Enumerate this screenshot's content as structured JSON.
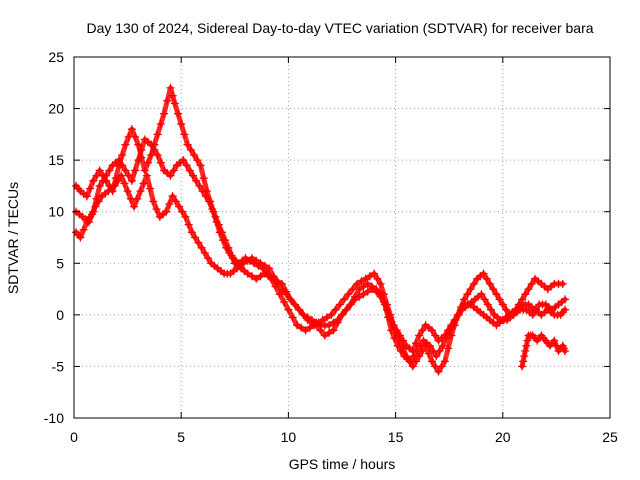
{
  "chart_data": {
    "type": "scatter",
    "title": "Day 130 of 2024, Sidereal Day-to-day VTEC variation (SDTVAR) for receiver bara",
    "xlabel": "GPS time / hours",
    "ylabel": "SDTVAR / TECUs",
    "xlim": [
      0,
      25
    ],
    "ylim": [
      -10,
      25
    ],
    "xticks": [
      0,
      5,
      10,
      15,
      20,
      25
    ],
    "yticks": [
      -10,
      -5,
      0,
      5,
      10,
      15,
      20,
      25
    ],
    "grid": true,
    "marker": "+",
    "color": "#ff0000",
    "series": [
      {
        "name": "track-1",
        "x": [
          0.1,
          0.3,
          0.6,
          0.9,
          1.2,
          1.5,
          1.8,
          2.1,
          2.4,
          2.7,
          3.0,
          3.3,
          3.6,
          3.9,
          4.2,
          4.5,
          4.7,
          5.0,
          5.3,
          5.6,
          5.9,
          6.2,
          6.5,
          6.8,
          7.1,
          7.4,
          7.7,
          8.0,
          8.4,
          8.8,
          9.2,
          9.6,
          10.0,
          10.4,
          10.8,
          11.2,
          11.6,
          12.0,
          12.4,
          12.8,
          13.2,
          13.6,
          14.0,
          14.3,
          14.6,
          14.9,
          15.2,
          15.5,
          15.8,
          16.1,
          16.4,
          16.7,
          17.0,
          17.3,
          17.6,
          17.9,
          18.2,
          18.5,
          18.8,
          19.1,
          19.4,
          19.7,
          20.0,
          20.3,
          20.6,
          20.9,
          21.2,
          21.5,
          21.8,
          22.1,
          22.4,
          22.8
        ],
        "y": [
          12.5,
          12.0,
          11.5,
          13.0,
          14.0,
          13.0,
          12.0,
          14.5,
          16.5,
          18.0,
          16.5,
          14.0,
          15.5,
          17.5,
          19.5,
          22.0,
          20.5,
          18.5,
          16.5,
          15.5,
          14.5,
          12.0,
          10.0,
          8.0,
          6.5,
          5.5,
          5.0,
          5.5,
          5.0,
          4.5,
          3.5,
          2.0,
          0.5,
          -1.0,
          -1.5,
          -1.0,
          -0.5,
          0.0,
          1.0,
          2.0,
          3.0,
          3.5,
          4.0,
          3.0,
          1.0,
          -1.0,
          -2.5,
          -4.0,
          -5.0,
          -4.0,
          -3.0,
          -4.5,
          -5.5,
          -4.5,
          -2.0,
          0.0,
          1.5,
          2.5,
          3.5,
          4.0,
          3.0,
          2.0,
          1.0,
          0.0,
          0.5,
          1.5,
          2.5,
          3.5,
          3.0,
          2.5,
          3.0,
          3.0
        ]
      },
      {
        "name": "track-2",
        "x": [
          0.1,
          0.3,
          0.6,
          0.9,
          1.2,
          1.5,
          1.8,
          2.1,
          2.4,
          2.7,
          3.0,
          3.3,
          3.6,
          3.9,
          4.2,
          4.5,
          4.8,
          5.1,
          5.4,
          5.7,
          6.0,
          6.3,
          6.6,
          6.9,
          7.2,
          7.5,
          7.8,
          8.1,
          8.5,
          8.9,
          9.3,
          9.7,
          10.1,
          10.5,
          10.9,
          11.3,
          11.7,
          12.1,
          12.5,
          12.9,
          13.3,
          13.7,
          14.1,
          14.5,
          14.8,
          15.1,
          15.4,
          15.7,
          16.0,
          16.3,
          16.6,
          16.9,
          17.2,
          17.5,
          17.8,
          18.1,
          18.4,
          18.7,
          19.0,
          19.3,
          19.6,
          19.9,
          20.2,
          20.5,
          20.8,
          21.1,
          21.4,
          21.7,
          22.0,
          22.3,
          22.6,
          22.9
        ],
        "y": [
          8.0,
          7.5,
          9.0,
          10.0,
          12.5,
          13.5,
          14.5,
          15.0,
          14.0,
          13.0,
          15.0,
          17.0,
          16.5,
          15.5,
          14.0,
          13.5,
          14.5,
          15.0,
          14.0,
          13.0,
          12.0,
          11.0,
          9.5,
          8.0,
          6.5,
          5.0,
          4.5,
          4.0,
          3.5,
          4.0,
          3.5,
          3.0,
          1.5,
          0.5,
          -0.5,
          -1.0,
          -2.0,
          -1.5,
          0.0,
          1.0,
          2.5,
          3.0,
          2.5,
          1.0,
          -1.5,
          -3.0,
          -4.0,
          -4.5,
          -3.5,
          -2.5,
          -3.0,
          -4.0,
          -3.0,
          -1.5,
          -0.5,
          0.5,
          1.0,
          1.5,
          2.0,
          1.0,
          0.0,
          -0.5,
          -0.5,
          0.0,
          0.5,
          0.5,
          0.0,
          1.0,
          1.0,
          0.5,
          1.0,
          1.5
        ]
      },
      {
        "name": "track-3",
        "x": [
          0.1,
          0.4,
          0.7,
          1.0,
          1.3,
          1.6,
          1.9,
          2.2,
          2.5,
          2.8,
          3.1,
          3.4,
          3.7,
          4.0,
          4.3,
          4.6,
          4.9,
          5.2,
          5.5,
          5.8,
          6.1,
          6.4,
          6.7,
          7.0,
          7.3,
          7.6,
          7.9,
          8.3,
          8.7,
          9.1,
          9.5,
          9.9,
          10.3,
          10.7,
          11.1,
          11.5,
          11.9,
          12.3,
          12.7,
          13.1,
          13.5,
          13.9,
          14.3,
          14.6,
          14.9,
          15.2,
          15.5,
          15.8,
          16.1,
          16.4,
          16.7,
          17.0,
          17.3,
          17.6,
          17.9,
          18.2,
          18.5,
          18.8,
          19.1,
          19.4,
          19.7,
          20.0,
          20.3,
          20.6,
          20.9,
          21.2,
          21.5,
          21.8,
          22.1,
          22.4,
          22.7,
          22.9
        ],
        "y": [
          10.0,
          9.5,
          9.0,
          10.5,
          11.5,
          12.0,
          12.5,
          13.5,
          12.0,
          10.5,
          12.0,
          13.5,
          11.0,
          9.5,
          10.0,
          11.5,
          10.5,
          9.5,
          8.0,
          7.0,
          6.0,
          5.0,
          4.5,
          4.0,
          4.0,
          4.5,
          5.0,
          5.5,
          5.0,
          4.5,
          3.0,
          2.0,
          1.0,
          0.0,
          -0.5,
          -1.0,
          -1.0,
          -0.5,
          0.5,
          1.5,
          2.0,
          2.5,
          2.0,
          0.5,
          -1.0,
          -2.0,
          -3.0,
          -3.5,
          -2.0,
          -1.0,
          -1.5,
          -2.5,
          -2.0,
          -1.0,
          0.0,
          1.0,
          1.0,
          0.5,
          0.0,
          -0.5,
          -1.0,
          -0.5,
          0.0,
          0.5,
          1.0,
          1.0,
          0.5,
          0.0,
          0.5,
          0.0,
          0.0,
          0.5
        ]
      },
      {
        "name": "track-4",
        "x": [
          20.9,
          21.0,
          21.1,
          21.2,
          21.4,
          21.6,
          21.8,
          22.0,
          22.2,
          22.4,
          22.6,
          22.8,
          22.9
        ],
        "y": [
          -5.0,
          -4.0,
          -3.0,
          -2.0,
          -2.0,
          -2.5,
          -2.0,
          -2.5,
          -3.0,
          -2.5,
          -3.5,
          -3.0,
          -3.5
        ]
      }
    ]
  }
}
